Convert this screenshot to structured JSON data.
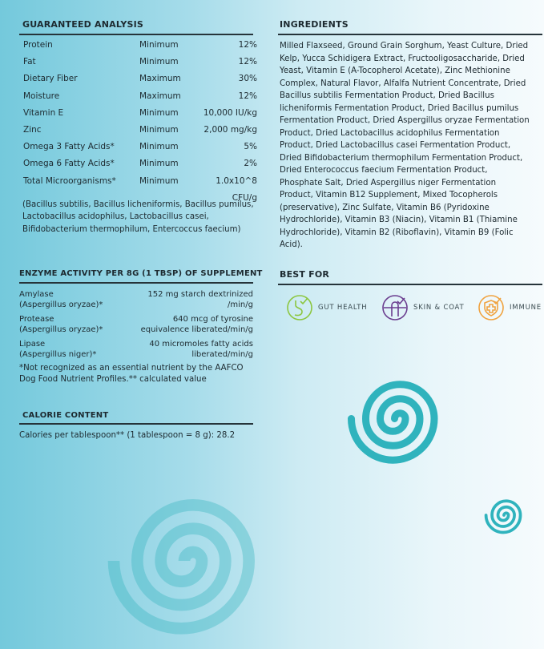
{
  "guaranteed_analysis": {
    "title": "GUARANTEED ANALYSIS",
    "rows": [
      [
        "Protein",
        "Minimum",
        "12%"
      ],
      [
        "Fat",
        "Minimum",
        "12%"
      ],
      [
        "Dietary Fiber",
        "Maximum",
        "30%"
      ],
      [
        "Moisture",
        "Maximum",
        "12%"
      ],
      [
        "Vitamin E",
        "Minimum",
        "10,000 IU/kg"
      ],
      [
        "Zinc",
        "Minimum",
        "2,000 mg/kg"
      ],
      [
        "Omega 3 Fatty Acids*",
        "Minimum",
        "5%"
      ],
      [
        "Omega 6 Fatty Acids*",
        "Minimum",
        "2%"
      ],
      [
        "Total Microorganisms*",
        "Minimum",
        "1.0x10^8 CFU/g"
      ]
    ],
    "note": "(Bacillus subtilis, Bacillus licheniformis, Bacillus pumilus, Lactobacillus acidophilus, Lactobacillus casei, Bifidobacterium thermophilum, Entercoccus faecium)"
  },
  "enzyme": {
    "title": "ENZYME ACTIVITY PER 8G (1 TBSP) OF SUPPLEMENT",
    "rows": [
      {
        "name": "Amylase\n(Aspergillus oryzae)*",
        "value": "152 mg starch dextrinized\n/min/g"
      },
      {
        "name": "Protease\n(Aspergillus oryzae)*",
        "value": "640 mcg of tyrosine\nequivalence liberated/min/g"
      },
      {
        "name": "Lipase\n(Aspergillus niger)*",
        "value": "40 micromoles fatty acids\nliberated/min/g"
      }
    ],
    "footnote": "*Not recognized as an essential nutrient by the AAFCO Dog Food Nutrient Profiles.** calculated value"
  },
  "calorie": {
    "title": "CALORIE CONTENT",
    "text": "Calories per tablespoon** (1 tablespoon = 8 g): 28.2"
  },
  "ingredients": {
    "title": "INGREDIENTS",
    "text": "Milled Flaxseed, Ground Grain Sorghum, Yeast Culture, Dried Kelp, Yucca Schidigera Extract, Fructooligosaccharide, Dried Yeast, Vitamin E (A-Tocopherol Acetate), Zinc Methionine Complex, Natural Flavor, Alfalfa Nutrient Concentrate, Dried Bacillus subtilis Fermentation Product, Dried Bacillus licheniformis Fermentation Product, Dried Bacillus pumilus Fermentation Product, Dried Aspergillus oryzae Fermentation Product, Dried Lactobacillus acidophilus Fermentation Product, Dried Lactobacillus casei Fermentation Product, Dried Bifidobacterium thermophilum Fermentation Product, Dried Enterococcus faecium Fermentation Product, Phosphate Salt, Dried Aspergillus niger Fermentation Product, Vitamin B12 Supplement, Mixed Tocopherols (preservative), Zinc Sulfate, Vitamin B6 (Pyridoxine Hydrochloride), Vitamin B3 (Niacin), Vitamin B1 (Thiamine Hydrochloride), Vitamin B2 (Riboflavin), Vitamin B9 (Folic Acid)."
  },
  "best_for": {
    "title": "BEST FOR",
    "items": [
      {
        "label": "GUT HEALTH",
        "icon": "stomach-check-icon",
        "color": "#8cc63f"
      },
      {
        "label": "SKIN & COAT",
        "icon": "hair-follicle-check-icon",
        "color": "#6a3d8f"
      },
      {
        "label": "IMMUNE",
        "icon": "shield-plus-icon",
        "color": "#f0a340"
      }
    ]
  },
  "colors": {
    "brand_teal": "#2fb3bd",
    "text": "#1d2a30"
  }
}
